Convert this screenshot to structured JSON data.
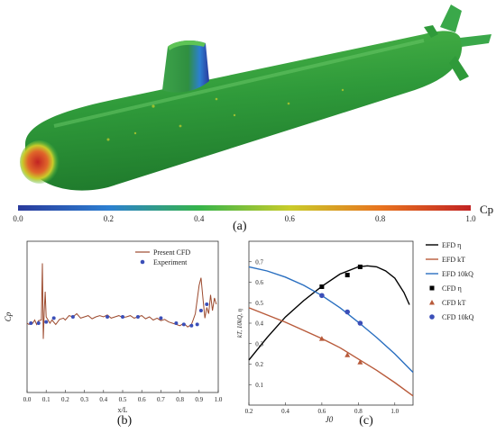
{
  "panel_labels": {
    "a": "(a)",
    "b": "(b)",
    "c": "(c)"
  },
  "colorbar": {
    "label": "Cp",
    "ticks": [
      "0.0",
      "0.2",
      "0.4",
      "0.6",
      "0.8",
      "1.0"
    ],
    "colors": [
      "#2a3a9c",
      "#2c7fd1",
      "#35b44a",
      "#c9cc2a",
      "#e8741f",
      "#c22323"
    ]
  },
  "chart_data": [
    {
      "id": "b",
      "type": "line",
      "xlabel": "x/L",
      "ylabel": "Cp",
      "xlim": [
        0.0,
        1.0
      ],
      "ylim": [
        -1.2,
        1.2
      ],
      "xticks": [
        "0.0",
        "0.1",
        "0.2",
        "0.3",
        "0.4",
        "0.5",
        "0.6",
        "0.7",
        "0.8",
        "0.9",
        "1.0"
      ],
      "yticks": [],
      "legend": {
        "position": "top-right"
      },
      "series": [
        {
          "name": "Present CFD",
          "kind": "line",
          "color": "#9c4a2e",
          "x": [
            0.0,
            0.01,
            0.02,
            0.03,
            0.04,
            0.05,
            0.06,
            0.075,
            0.08,
            0.085,
            0.09,
            0.095,
            0.1,
            0.11,
            0.12,
            0.13,
            0.15,
            0.17,
            0.19,
            0.2,
            0.22,
            0.24,
            0.26,
            0.28,
            0.3,
            0.32,
            0.34,
            0.36,
            0.38,
            0.4,
            0.42,
            0.44,
            0.46,
            0.48,
            0.5,
            0.52,
            0.54,
            0.56,
            0.58,
            0.6,
            0.62,
            0.64,
            0.66,
            0.68,
            0.7,
            0.72,
            0.74,
            0.76,
            0.78,
            0.8,
            0.82,
            0.84,
            0.86,
            0.87,
            0.88,
            0.9,
            0.91,
            0.92,
            0.93,
            0.94,
            0.95,
            0.96,
            0.97,
            0.98,
            0.99
          ],
          "y": [
            -0.1,
            -0.12,
            -0.08,
            -0.1,
            -0.05,
            -0.12,
            -0.06,
            -0.05,
            0.85,
            -0.35,
            0.1,
            0.4,
            0.0,
            -0.05,
            -0.1,
            -0.05,
            -0.12,
            -0.04,
            -0.02,
            -0.05,
            0.02,
            0.0,
            0.05,
            -0.02,
            0.0,
            0.02,
            -0.03,
            0.0,
            0.02,
            0.0,
            0.03,
            -0.02,
            0.0,
            0.02,
            -0.01,
            0.0,
            0.02,
            -0.02,
            0.0,
            0.02,
            -0.03,
            0.0,
            -0.05,
            -0.02,
            -0.06,
            -0.04,
            -0.08,
            -0.1,
            -0.12,
            -0.14,
            -0.1,
            -0.16,
            -0.12,
            -0.04,
            0.05,
            0.5,
            0.62,
            0.3,
            -0.02,
            0.15,
            0.05,
            0.35,
            0.1,
            0.3,
            0.2
          ]
        },
        {
          "name": "Experiment",
          "kind": "scatter",
          "color": "#3b4fb8",
          "x": [
            0.02,
            0.06,
            0.1,
            0.14,
            0.24,
            0.42,
            0.5,
            0.58,
            0.7,
            0.78,
            0.82,
            0.86,
            0.89,
            0.91,
            0.94
          ],
          "y": [
            -0.1,
            -0.1,
            -0.08,
            -0.02,
            0.0,
            0.0,
            0.0,
            0.0,
            -0.02,
            -0.1,
            -0.12,
            -0.14,
            -0.12,
            0.1,
            0.2
          ]
        }
      ]
    },
    {
      "id": "c",
      "type": "line",
      "xlabel": "J0",
      "ylabel": "kT, 10kQ, η",
      "xlim": [
        0.2,
        1.1
      ],
      "ylim": [
        0.0,
        0.8
      ],
      "xticks": [
        "0.2",
        "0.4",
        "0.6",
        "0.8",
        "1.0"
      ],
      "yticks": [
        "0.1",
        "0.2",
        "0.3",
        "0.4",
        "0.5",
        "0.6",
        "0.7"
      ],
      "legend": {
        "position": "right-outside"
      },
      "series": [
        {
          "name": "EFD η",
          "kind": "line",
          "color": "#000000",
          "x": [
            0.2,
            0.3,
            0.4,
            0.5,
            0.6,
            0.7,
            0.8,
            0.85,
            0.9,
            0.95,
            1.0,
            1.05,
            1.08
          ],
          "y": [
            0.22,
            0.33,
            0.43,
            0.51,
            0.58,
            0.64,
            0.675,
            0.68,
            0.675,
            0.655,
            0.62,
            0.55,
            0.49
          ]
        },
        {
          "name": "EFD kT",
          "kind": "line",
          "color": "#b85a3a",
          "x": [
            0.2,
            0.3,
            0.4,
            0.5,
            0.6,
            0.7,
            0.8,
            0.9,
            1.0,
            1.1
          ],
          "y": [
            0.475,
            0.44,
            0.405,
            0.365,
            0.325,
            0.28,
            0.225,
            0.17,
            0.11,
            0.045
          ]
        },
        {
          "name": "EFD 10kQ",
          "kind": "line",
          "color": "#2a6fc0",
          "x": [
            0.2,
            0.3,
            0.4,
            0.5,
            0.6,
            0.7,
            0.8,
            0.9,
            1.0,
            1.1
          ],
          "y": [
            0.675,
            0.655,
            0.625,
            0.585,
            0.535,
            0.475,
            0.405,
            0.33,
            0.25,
            0.16
          ]
        },
        {
          "name": "CFD η",
          "kind": "scatter",
          "marker": "square",
          "color": "#000000",
          "x": [
            0.6,
            0.74,
            0.81
          ],
          "y": [
            0.578,
            0.635,
            0.675
          ]
        },
        {
          "name": "CFD kT",
          "kind": "scatter",
          "marker": "triangle",
          "color": "#b85a3a",
          "x": [
            0.6,
            0.74,
            0.81
          ],
          "y": [
            0.325,
            0.245,
            0.21
          ]
        },
        {
          "name": "CFD 10kQ",
          "kind": "scatter",
          "marker": "circle",
          "color": "#3b4fb8",
          "x": [
            0.6,
            0.74,
            0.81
          ],
          "y": [
            0.535,
            0.455,
            0.4
          ]
        }
      ]
    }
  ]
}
